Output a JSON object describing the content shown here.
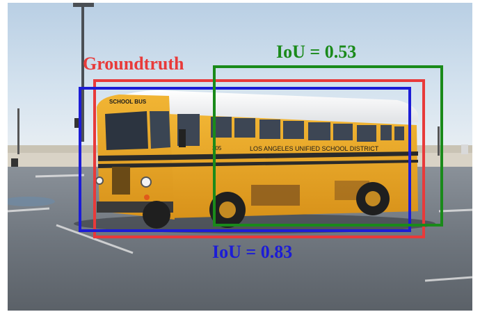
{
  "figure": {
    "subject": "school bus",
    "bus_side_text": "LOS ANGELES UNIFIED SCHOOL DISTRICT",
    "bus_front_text": "SCHOOL BUS",
    "bus_number": "305"
  },
  "boxes": {
    "groundtruth": {
      "label": "Groundtruth",
      "color": "#e83a3a"
    },
    "prediction_green": {
      "label": "IoU = 0.53",
      "iou": 0.53,
      "color": "#1a8a1a"
    },
    "prediction_blue": {
      "label": "IoU = 0.83",
      "iou": 0.83,
      "color": "#1c1cd6"
    }
  }
}
